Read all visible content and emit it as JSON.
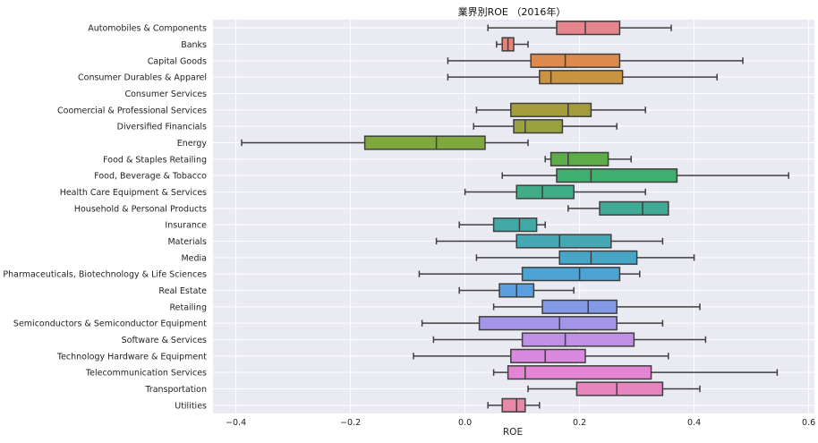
{
  "chart_data": {
    "type": "boxplot",
    "title": "業界別ROE （2016年）",
    "xlabel": "ROE",
    "ylabel": "",
    "xlim": [
      -0.44,
      0.61
    ],
    "xticks": [
      -0.4,
      -0.2,
      0.0,
      0.2,
      0.4,
      0.6
    ],
    "xtick_labels": [
      "−0.4",
      "−0.2",
      "0.0",
      "0.2",
      "0.4",
      "0.6"
    ],
    "grid": true,
    "background": "#eaeaf2",
    "categories": [
      "Automobiles & Components",
      "Banks",
      "Capital Goods",
      "Consumer Durables & Apparel",
      "Consumer Services",
      "Coomercial & Professional Services",
      "Diversified Financials",
      "Energy",
      "Food & Staples Retailing",
      "Food, Beverage & Tobacco",
      "Health Care Equipment & Services",
      "Household & Personal Products",
      "Insurance",
      "Materials",
      "Media",
      "Pharmaceuticals, Biotechnology & Life Sciences",
      "Real Estate",
      "Retailing",
      "Semiconductors & Semiconductor Equipment",
      "Software & Services",
      "Technology Hardware & Equipment",
      "Telecommunication Services",
      "Transportation",
      "Utilities"
    ],
    "boxes": [
      {
        "min": 0.04,
        "q1": 0.16,
        "median": 0.21,
        "q3": 0.27,
        "max": 0.36,
        "color": "#e5868e"
      },
      {
        "min": 0.055,
        "q1": 0.065,
        "median": 0.075,
        "q3": 0.085,
        "max": 0.11,
        "color": "#e3837a"
      },
      {
        "min": -0.03,
        "q1": 0.115,
        "median": 0.175,
        "q3": 0.27,
        "max": 0.485,
        "color": "#dc8a4e"
      },
      {
        "min": -0.03,
        "q1": 0.13,
        "median": 0.15,
        "q3": 0.275,
        "max": 0.44,
        "color": "#c99342"
      },
      null,
      {
        "min": 0.02,
        "q1": 0.08,
        "median": 0.18,
        "q3": 0.22,
        "max": 0.315,
        "color": "#a59c3d"
      },
      {
        "min": 0.015,
        "q1": 0.085,
        "median": 0.105,
        "q3": 0.17,
        "max": 0.265,
        "color": "#99a23d"
      },
      {
        "min": -0.39,
        "q1": -0.175,
        "median": -0.05,
        "q3": 0.035,
        "max": 0.11,
        "color": "#80a83f"
      },
      {
        "min": 0.14,
        "q1": 0.15,
        "median": 0.18,
        "q3": 0.25,
        "max": 0.29,
        "color": "#5cad4a"
      },
      {
        "min": 0.065,
        "q1": 0.16,
        "median": 0.22,
        "q3": 0.37,
        "max": 0.565,
        "color": "#3fae6e"
      },
      {
        "min": 0.0,
        "q1": 0.09,
        "median": 0.135,
        "q3": 0.19,
        "max": 0.315,
        "color": "#41ac87"
      },
      {
        "min": 0.18,
        "q1": 0.235,
        "median": 0.31,
        "q3": 0.355,
        "max": 0.355,
        "color": "#41aa97"
      },
      {
        "min": -0.01,
        "q1": 0.05,
        "median": 0.095,
        "q3": 0.125,
        "max": 0.14,
        "color": "#42a9a6"
      },
      {
        "min": -0.05,
        "q1": 0.09,
        "median": 0.165,
        "q3": 0.255,
        "max": 0.345,
        "color": "#44a8b5"
      },
      {
        "min": 0.02,
        "q1": 0.165,
        "median": 0.22,
        "q3": 0.3,
        "max": 0.4,
        "color": "#47a6c5"
      },
      {
        "min": -0.08,
        "q1": 0.1,
        "median": 0.2,
        "q3": 0.27,
        "max": 0.305,
        "color": "#4ca3d4"
      },
      {
        "min": -0.01,
        "q1": 0.06,
        "median": 0.09,
        "q3": 0.12,
        "max": 0.19,
        "color": "#5b9fe0"
      },
      {
        "min": 0.05,
        "q1": 0.135,
        "median": 0.215,
        "q3": 0.265,
        "max": 0.41,
        "color": "#8299e6"
      },
      {
        "min": -0.075,
        "q1": 0.025,
        "median": 0.165,
        "q3": 0.265,
        "max": 0.345,
        "color": "#a495e8"
      },
      {
        "min": -0.055,
        "q1": 0.1,
        "median": 0.175,
        "q3": 0.295,
        "max": 0.42,
        "color": "#c08fe6"
      },
      {
        "min": -0.09,
        "q1": 0.08,
        "median": 0.14,
        "q3": 0.21,
        "max": 0.355,
        "color": "#d98ade"
      },
      {
        "min": 0.05,
        "q1": 0.075,
        "median": 0.105,
        "q3": 0.325,
        "max": 0.545,
        "color": "#e385d3"
      },
      {
        "min": 0.11,
        "q1": 0.195,
        "median": 0.265,
        "q3": 0.345,
        "max": 0.41,
        "color": "#e685bf"
      },
      {
        "min": 0.04,
        "q1": 0.065,
        "median": 0.09,
        "q3": 0.105,
        "max": 0.13,
        "color": "#e688a8"
      }
    ]
  }
}
